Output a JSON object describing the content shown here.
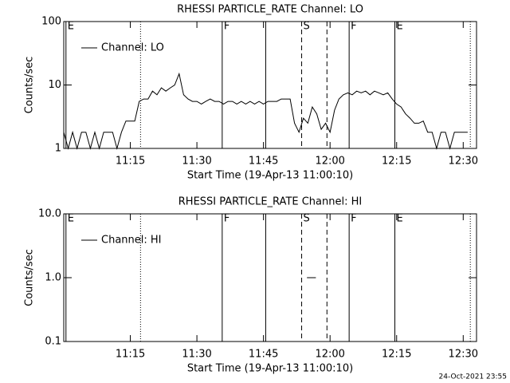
{
  "chart_data": [
    {
      "type": "line",
      "title": "RHESSI PARTICLE_RATE Channel: LO",
      "x_label": "Start Time (19-Apr-13 11:00:10)",
      "y_label": "Counts/sec",
      "log_y": true,
      "ylim": [
        1,
        100
      ],
      "yticks": [
        1,
        10,
        100
      ],
      "xlim": [
        0,
        93
      ],
      "xticks": [
        {
          "value": 15,
          "label": "11:15"
        },
        {
          "value": 30,
          "label": "11:30"
        },
        {
          "value": 45,
          "label": "11:45"
        },
        {
          "value": 60,
          "label": "12:00"
        },
        {
          "value": 75,
          "label": "12:15"
        },
        {
          "value": 90,
          "label": "12:30"
        }
      ],
      "legend": "upper left",
      "markers": [
        {
          "x": 0.5,
          "style": "solid",
          "label": "E"
        },
        {
          "x": 17.3,
          "style": "dotted"
        },
        {
          "x": 35.7,
          "style": "solid",
          "label": "F"
        },
        {
          "x": 45.5,
          "style": "solid"
        },
        {
          "x": 53.6,
          "style": "dashed",
          "label": "S"
        },
        {
          "x": 59.3,
          "style": "dashed"
        },
        {
          "x": 64.3,
          "style": "solid",
          "label": "F"
        },
        {
          "x": 74.6,
          "style": "solid",
          "label": "E"
        },
        {
          "x": 91.6,
          "style": "dotted"
        }
      ],
      "x": [
        0,
        1,
        2,
        3,
        4,
        5,
        6,
        7,
        8,
        9,
        10,
        11,
        12,
        13,
        14,
        15,
        16,
        17,
        18,
        19,
        20,
        21,
        22,
        23,
        24,
        25,
        26,
        27,
        28,
        29,
        30,
        31,
        32,
        33,
        34,
        35,
        36,
        37,
        38,
        39,
        40,
        41,
        42,
        43,
        44,
        45,
        46,
        47,
        48,
        49,
        50,
        51,
        52,
        53,
        54,
        55,
        56,
        57,
        58,
        59,
        60,
        61,
        62,
        63,
        64,
        65,
        66,
        67,
        68,
        69,
        70,
        71,
        72,
        73,
        74,
        75,
        76,
        77,
        78,
        79,
        80,
        81,
        82,
        83,
        84,
        85,
        86,
        87,
        88,
        89,
        90,
        91
      ],
      "series": [
        {
          "name": "Channel: LO",
          "color": "#000000",
          "values": [
            1.8,
            1,
            1.8,
            1,
            1.8,
            1.8,
            1,
            1.8,
            1,
            1.8,
            1.8,
            1.8,
            1,
            1.8,
            2.7,
            2.7,
            2.7,
            5.5,
            6,
            6,
            8,
            7,
            9,
            8,
            9,
            10,
            15,
            7,
            6,
            5.5,
            5.5,
            5,
            5.5,
            6,
            5.5,
            5.5,
            5,
            5.5,
            5.5,
            5,
            5.5,
            5,
            5.5,
            5,
            5.5,
            5,
            5.5,
            5.5,
            5.5,
            6,
            6,
            6,
            2.5,
            1.8,
            3,
            2.5,
            4.5,
            3.5,
            2,
            2.5,
            1.8,
            4,
            6,
            7,
            7.5,
            7,
            8,
            7.5,
            8,
            7,
            8,
            7.5,
            7,
            7.5,
            6,
            5,
            4.5,
            3.5,
            3,
            2.5,
            2.5,
            2.7,
            1.8,
            1.8,
            1,
            1.8,
            1.8,
            1,
            1.8,
            1.8,
            1.8,
            1.8
          ]
        }
      ]
    },
    {
      "type": "line",
      "title": "RHESSI PARTICLE_RATE Channel: HI",
      "x_label": "Start Time (19-Apr-13 11:00:10)",
      "y_label": "Counts/sec",
      "log_y": true,
      "ylim": [
        0.1,
        10
      ],
      "yticks": [
        0.1,
        {
          "value": 1,
          "label": "1.0"
        },
        {
          "value": 10,
          "label": "10.0"
        }
      ],
      "xlim": [
        0,
        93
      ],
      "xticks": [
        {
          "value": 15,
          "label": "11:15"
        },
        {
          "value": 30,
          "label": "11:30"
        },
        {
          "value": 45,
          "label": "11:45"
        },
        {
          "value": 60,
          "label": "12:00"
        },
        {
          "value": 75,
          "label": "12:15"
        },
        {
          "value": 90,
          "label": "12:30"
        }
      ],
      "legend": "upper left",
      "markers": [
        {
          "x": 0.5,
          "style": "solid",
          "label": "E"
        },
        {
          "x": 17.3,
          "style": "dotted"
        },
        {
          "x": 35.7,
          "style": "solid",
          "label": "F"
        },
        {
          "x": 45.5,
          "style": "solid"
        },
        {
          "x": 53.6,
          "style": "dashed",
          "label": "S"
        },
        {
          "x": 59.3,
          "style": "dashed"
        },
        {
          "x": 64.3,
          "style": "solid",
          "label": "F"
        },
        {
          "x": 74.6,
          "style": "solid",
          "label": "E"
        },
        {
          "x": 91.6,
          "style": "dotted"
        }
      ],
      "x": [
        54.8,
        56.8
      ],
      "series": [
        {
          "name": "Channel: HI",
          "color": "#000000",
          "values": [
            1,
            1
          ]
        }
      ]
    }
  ],
  "timestamp": "24-Oct-2021 23:55"
}
